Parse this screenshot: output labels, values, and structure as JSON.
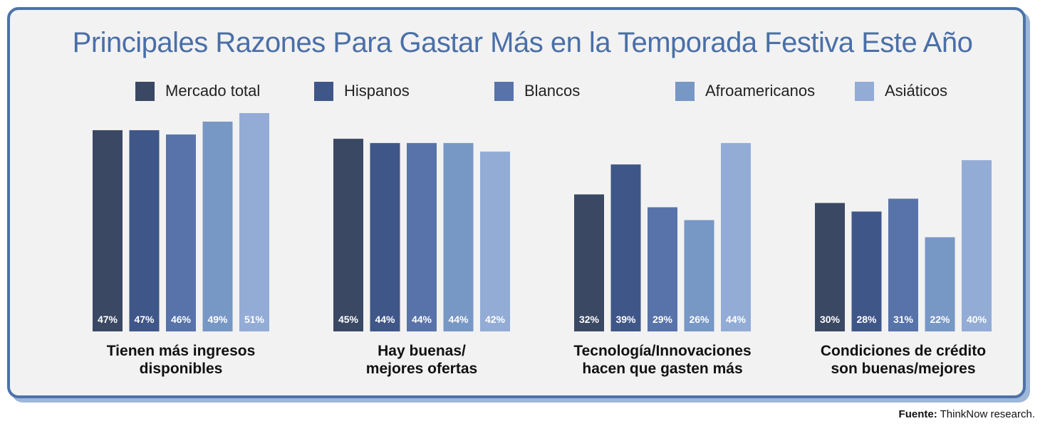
{
  "title": "Principales Razones Para Gastar Más en la Temporada Festiva Este Año",
  "source": {
    "prefix": "Fuente:",
    "text": "ThinkNow research."
  },
  "colors": {
    "Mercado total": "#3a4863",
    "Hispanos": "#3f5688",
    "Blancos": "#5873aa",
    "Afroamericanos": "#7797c5",
    "Asiáticos": "#92acd6"
  },
  "chart_data": {
    "type": "bar",
    "title": "Principales Razones Para Gastar Más en la Temporada Festiva Este Año",
    "categories": [
      "Tienen más ingresos disponibles",
      "Hay buenas/ mejores ofertas",
      "Tecnología/Innovaciones hacen que gasten más",
      "Condiciones de crédito son buenas/mejores"
    ],
    "category_lines": [
      [
        "Tienen más ingresos",
        "disponibles"
      ],
      [
        "Hay buenas/",
        "mejores ofertas"
      ],
      [
        "Tecnología/Innovaciones",
        "hacen que gasten más"
      ],
      [
        "Condiciones de crédito",
        "son buenas/mejores"
      ]
    ],
    "series": [
      {
        "name": "Mercado total",
        "values": [
          47,
          45,
          32,
          30
        ]
      },
      {
        "name": "Hispanos",
        "values": [
          47,
          44,
          39,
          28
        ]
      },
      {
        "name": "Blancos",
        "values": [
          46,
          44,
          29,
          31
        ]
      },
      {
        "name": "Afroamericanos",
        "values": [
          49,
          44,
          26,
          22
        ]
      },
      {
        "name": "Asiáticos",
        "values": [
          51,
          42,
          44,
          40
        ]
      }
    ],
    "value_suffix": "%",
    "ylim": [
      0,
      51
    ],
    "grid": false,
    "legend_position": "top"
  }
}
